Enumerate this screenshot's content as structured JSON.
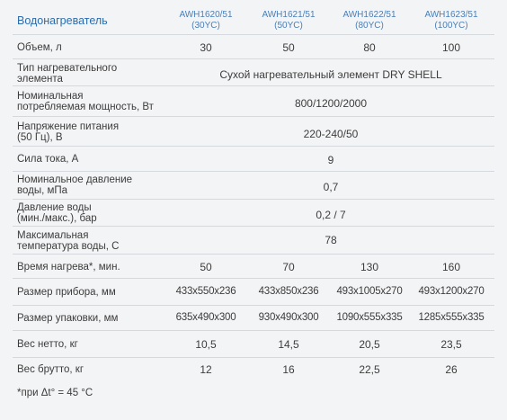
{
  "header": {
    "title": "Водонагреватель",
    "models": [
      {
        "code": "AWH1620/51",
        "volume": "(30YC)"
      },
      {
        "code": "AWH1621/51",
        "volume": "(50YC)"
      },
      {
        "code": "AWH1622/51",
        "volume": "(80YC)"
      },
      {
        "code": "AWH1623/51",
        "volume": "(100YC)"
      }
    ]
  },
  "rows": [
    {
      "label": [
        "Объем, л"
      ],
      "values": [
        "30",
        "50",
        "80",
        "100"
      ]
    },
    {
      "label": [
        "Тип нагревательного",
        "элемента"
      ],
      "span": "Сухой нагревательный элемент DRY SHELL"
    },
    {
      "label": [
        "Номинальная",
        "потребляемая мощность, Вт"
      ],
      "span": "800/1200/2000"
    },
    {
      "label": [
        "Напряжение питания",
        "(50 Гц), В"
      ],
      "span": "220-240/50"
    },
    {
      "label": [
        "Сила тока, А"
      ],
      "span": "9"
    },
    {
      "label": [
        "Номинальное давление",
        "воды, мПа"
      ],
      "span": "0,7"
    },
    {
      "label": [
        "Давление воды",
        "(мин./макс.), бар"
      ],
      "span": "0,2 / 7"
    },
    {
      "label": [
        "Максимальная",
        "температура воды, С"
      ],
      "span": "78"
    },
    {
      "label": [
        "Время нагрева*, мин."
      ],
      "values": [
        "50",
        "70",
        "130",
        "160"
      ]
    },
    {
      "label": [
        "Размер прибора, мм"
      ],
      "values": [
        "433x550x236",
        "433x850x236",
        "493x1005x270",
        "493x1200x270"
      ]
    },
    {
      "label": [
        "Размер упаковки, мм"
      ],
      "values": [
        "635x490x300",
        "930x490x300",
        "1090x555x335",
        "1285x555x335"
      ]
    },
    {
      "label": [
        "Вес нетто, кг"
      ],
      "values": [
        "10,5",
        "14,5",
        "20,5",
        "23,5"
      ]
    },
    {
      "label": [
        "Вес брутто, кг"
      ],
      "values": [
        "12",
        "16",
        "22,5",
        "26"
      ]
    }
  ],
  "footnote": "*при Δt° = 45 °C"
}
